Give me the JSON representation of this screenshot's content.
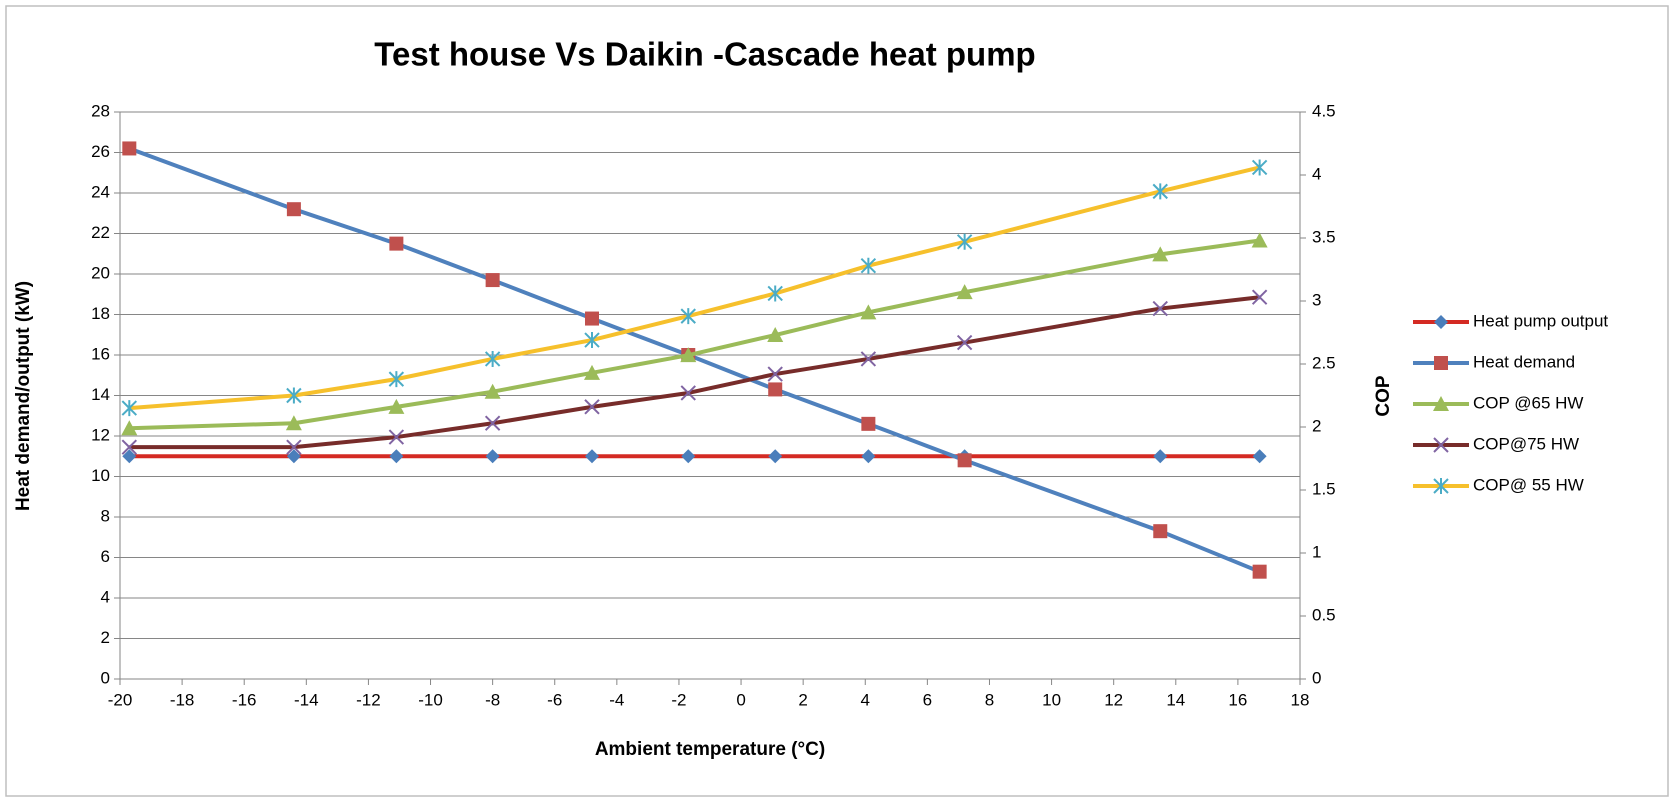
{
  "chart_data": {
    "type": "line",
    "title": "Test house Vs Daikin -Cascade heat pump",
    "x_label": "Ambient temperature (°C)",
    "y_label": "Heat demand/output (kW)",
    "y2_label": "COP",
    "x": [
      -19.7,
      -14.4,
      -11.1,
      -8,
      -4.8,
      -1.7,
      1.1,
      4.1,
      7.2,
      13.5,
      16.7
    ],
    "series": [
      {
        "name": "Heat pump output",
        "color": "#d42a23",
        "marker_color": "#4a7ebb",
        "marker": "diamond",
        "values": [
          11,
          11,
          11,
          11,
          11,
          11,
          11,
          11,
          11,
          11,
          11
        ]
      },
      {
        "name": "Heat demand",
        "color": "#4f81bd",
        "marker_color": "#c0504d",
        "marker": "square",
        "values": [
          26.2,
          23.2,
          21.5,
          19.7,
          17.8,
          16.0,
          14.3,
          12.6,
          10.8,
          7.3,
          5.3
        ]
      },
      {
        "name": "COP @65 HW",
        "color": "#9bbb59",
        "marker_color": "#9bbb59",
        "marker": "triangle",
        "axis": "y2",
        "values": [
          1.99,
          2.03,
          2.16,
          2.28,
          2.43,
          2.57,
          2.73,
          2.91,
          3.07,
          3.37,
          3.48
        ]
      },
      {
        "name": "COP@75 HW",
        "color": "#772c2a",
        "marker_color": "#8064a2",
        "marker": "x",
        "axis": "y2",
        "values": [
          1.84,
          1.84,
          1.92,
          2.03,
          2.16,
          2.27,
          2.42,
          2.54,
          2.67,
          2.94,
          3.03
        ]
      },
      {
        "name": "COP@ 55 HW",
        "color": "#f6c02c",
        "marker_color": "#4bacc6",
        "marker": "star",
        "axis": "y2",
        "values": [
          2.15,
          2.25,
          2.38,
          2.54,
          2.69,
          2.88,
          3.06,
          3.28,
          3.47,
          3.87,
          4.06
        ]
      }
    ],
    "xlim": [
      -20,
      18
    ],
    "xticks": [
      -20,
      -18,
      -16,
      -14,
      -12,
      -10,
      -8,
      -6,
      -4,
      -2,
      0,
      2,
      4,
      6,
      8,
      10,
      12,
      14,
      16,
      18
    ],
    "ylim": [
      0,
      28
    ],
    "yticks": [
      0,
      2,
      4,
      6,
      8,
      10,
      12,
      14,
      16,
      18,
      20,
      22,
      24,
      26,
      28
    ],
    "y2lim": [
      0,
      4.5
    ],
    "y2ticks": [
      0,
      0.5,
      1,
      1.5,
      2,
      2.5,
      3,
      3.5,
      4,
      4.5
    ],
    "grid": true,
    "legend": "right"
  }
}
